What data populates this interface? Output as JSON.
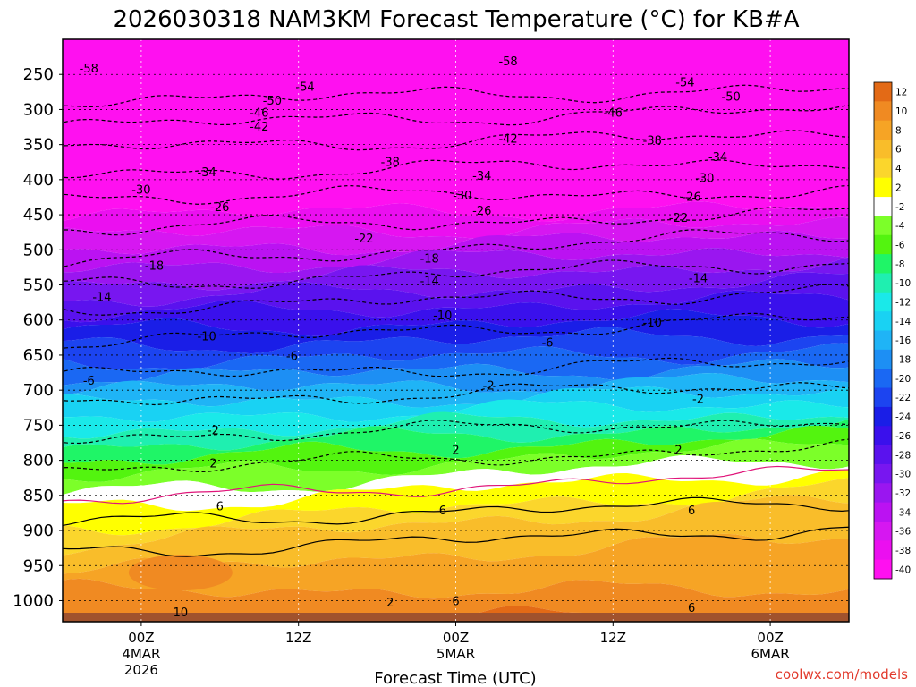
{
  "chart_data": {
    "type": "heatmap",
    "title": "2026030318 NAM3KM Forecast Temperature (°C) for KB#A",
    "xlabel": "Forecast Time (UTC)",
    "credit": "coolwx.com/models",
    "x_ticks": [
      {
        "hours_from_start": 6,
        "lines": [
          "00Z",
          "4MAR",
          "2026"
        ]
      },
      {
        "hours_from_start": 18,
        "lines": [
          "12Z"
        ]
      },
      {
        "hours_from_start": 30,
        "lines": [
          "00Z",
          "5MAR"
        ]
      },
      {
        "hours_from_start": 42,
        "lines": [
          "12Z"
        ]
      },
      {
        "hours_from_start": 54,
        "lines": [
          "00Z",
          "6MAR"
        ]
      }
    ],
    "xlim_hours": [
      0,
      60
    ],
    "y_axis_hpa_ticks": [
      "250",
      "300",
      "350",
      "400",
      "450",
      "500",
      "550",
      "600",
      "650",
      "700",
      "750",
      "800",
      "850",
      "900",
      "950",
      "1000"
    ],
    "ylim_hpa": [
      200,
      1030
    ],
    "colorbar": {
      "labels": [
        "12",
        "10",
        "8",
        "6",
        "4",
        "2",
        "-2",
        "-4",
        "-6",
        "-8",
        "-10",
        "-12",
        "-14",
        "-16",
        "-18",
        "-20",
        "-22",
        "-24",
        "-26",
        "-28",
        "-30",
        "-32",
        "-34",
        "-36",
        "-38",
        "-40"
      ],
      "colors": [
        "#e36a16",
        "#f08a22",
        "#f6a425",
        "#f9bd2a",
        "#fbd62c",
        "#ffff00",
        "#ffffff",
        "#7cff29",
        "#53f40f",
        "#1ff567",
        "#1fefb0",
        "#1ae9e9",
        "#19d2f3",
        "#1fb4f6",
        "#1d8ff4",
        "#1a68f3",
        "#1c44f0",
        "#1a1ee7",
        "#3a10ec",
        "#5a12ee",
        "#7816f0",
        "#9a16f0",
        "#bb12f2",
        "#d617f1",
        "#eb0ff0",
        "#ff10f0"
      ]
    },
    "contour_levels_c": [
      -58,
      -54,
      -50,
      -46,
      -42,
      -38,
      -34,
      -30,
      -26,
      -22,
      -18,
      -14,
      -10,
      -6,
      -2,
      2,
      6,
      10
    ],
    "contour_labels": [
      {
        "value": "-58",
        "hours": 2.0,
        "hpa": 242
      },
      {
        "value": "-58",
        "hours": 34.0,
        "hpa": 232
      },
      {
        "value": "-54",
        "hours": 18.5,
        "hpa": 268
      },
      {
        "value": "-54",
        "hours": 47.5,
        "hpa": 262
      },
      {
        "value": "-50",
        "hours": 16.0,
        "hpa": 288
      },
      {
        "value": "-50",
        "hours": 51.0,
        "hpa": 282
      },
      {
        "value": "-46",
        "hours": 15.0,
        "hpa": 305
      },
      {
        "value": "-46",
        "hours": 42.0,
        "hpa": 305
      },
      {
        "value": "-42",
        "hours": 15.0,
        "hpa": 325
      },
      {
        "value": "-42",
        "hours": 34.0,
        "hpa": 342
      },
      {
        "value": "-38",
        "hours": 25.0,
        "hpa": 375
      },
      {
        "value": "-38",
        "hours": 45.0,
        "hpa": 345
      },
      {
        "value": "-34",
        "hours": 11.0,
        "hpa": 390
      },
      {
        "value": "-34",
        "hours": 32.0,
        "hpa": 395
      },
      {
        "value": "-34",
        "hours": 50.0,
        "hpa": 368
      },
      {
        "value": "-30",
        "hours": 6.0,
        "hpa": 415
      },
      {
        "value": "-30",
        "hours": 30.5,
        "hpa": 423
      },
      {
        "value": "-30",
        "hours": 49.0,
        "hpa": 398
      },
      {
        "value": "-26",
        "hours": 12.0,
        "hpa": 440
      },
      {
        "value": "-26",
        "hours": 32.0,
        "hpa": 445
      },
      {
        "value": "-26",
        "hours": 48.0,
        "hpa": 425
      },
      {
        "value": "-22",
        "hours": 23.0,
        "hpa": 484
      },
      {
        "value": "-22",
        "hours": 47.0,
        "hpa": 455
      },
      {
        "value": "-18",
        "hours": 7.0,
        "hpa": 523
      },
      {
        "value": "-18",
        "hours": 28.0,
        "hpa": 513
      },
      {
        "value": "-14",
        "hours": 3.0,
        "hpa": 568
      },
      {
        "value": "-14",
        "hours": 28.0,
        "hpa": 545
      },
      {
        "value": "-14",
        "hours": 48.5,
        "hpa": 541
      },
      {
        "value": "-10",
        "hours": 11.0,
        "hpa": 624
      },
      {
        "value": "-10",
        "hours": 29.0,
        "hpa": 594
      },
      {
        "value": "-10",
        "hours": 45.0,
        "hpa": 604
      },
      {
        "value": "-6",
        "hours": 2.0,
        "hpa": 687
      },
      {
        "value": "-6",
        "hours": 17.5,
        "hpa": 652
      },
      {
        "value": "-6",
        "hours": 37.0,
        "hpa": 633
      },
      {
        "value": "2",
        "hours": 11.5,
        "hpa": 805
      },
      {
        "value": "2",
        "hours": 30.0,
        "hpa": 786
      },
      {
        "value": "2",
        "hours": 47.0,
        "hpa": 786
      },
      {
        "value": "6",
        "hours": 12.0,
        "hpa": 866
      },
      {
        "value": "6",
        "hours": 29.0,
        "hpa": 872
      },
      {
        "value": "6",
        "hours": 48.0,
        "hpa": 872
      },
      {
        "value": "6",
        "hours": 48.0,
        "hpa": 1011
      },
      {
        "value": "6",
        "hours": 30.0,
        "hpa": 1001
      },
      {
        "value": "10",
        "hours": 9.0,
        "hpa": 1017
      },
      {
        "value": "2",
        "hours": 25.0,
        "hpa": 1003
      },
      {
        "value": "-2",
        "hours": 11.5,
        "hpa": 758
      },
      {
        "value": "-2",
        "hours": 32.5,
        "hpa": 694
      },
      {
        "value": "-2",
        "hours": 48.5,
        "hpa": 713
      }
    ]
  }
}
